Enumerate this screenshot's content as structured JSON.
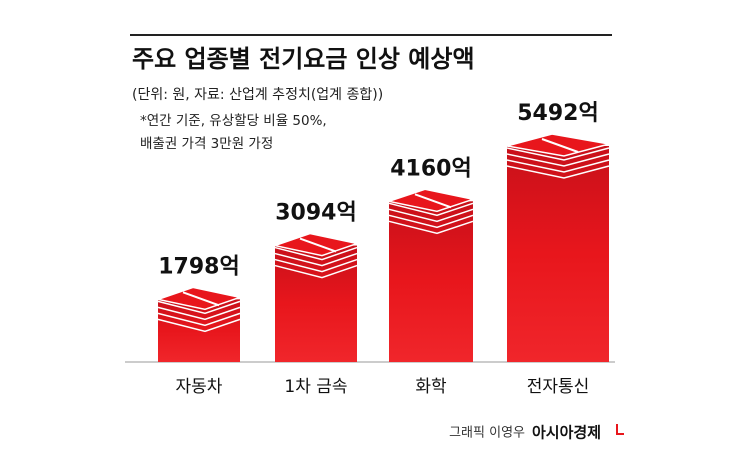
{
  "chart_data": {
    "type": "bar",
    "title": "주요 업종별 전기요금 인상 예상액",
    "subtitle": "(단위: 원, 자료: 산업계 추정치(업계 종합))",
    "notes": [
      "*연간 기준, 유상할당 비율 50%,",
      "배출권 가격 3만원 가정"
    ],
    "categories": [
      "자동차",
      "1차 금속",
      "화학",
      "전자통신"
    ],
    "values": [
      1798,
      3094,
      4160,
      5492
    ],
    "value_labels": [
      "1798억",
      "3094억",
      "4160억",
      "5492억"
    ],
    "color": "#e8161c",
    "credit": "그래픽 이영우",
    "source": "아시아경제"
  }
}
